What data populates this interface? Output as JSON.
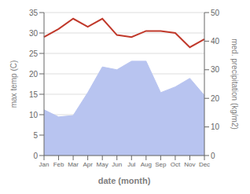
{
  "chart_data": {
    "type": "line",
    "categories": [
      "Jan",
      "Feb",
      "Mar",
      "Apr",
      "May",
      "Jun",
      "Jul",
      "Aug",
      "Sep",
      "Oct",
      "Nov",
      "Dec"
    ],
    "series": [
      {
        "type": "area",
        "axis": "y2",
        "color": "#b8c4f0",
        "values": [
          16,
          13.5,
          14,
          22,
          31,
          30,
          33,
          33,
          22,
          24,
          27,
          21
        ]
      },
      {
        "type": "line",
        "color": "#c0392b",
        "values": [
          29,
          31,
          33.5,
          31.5,
          33.5,
          29.5,
          29,
          30.5,
          30.5,
          30,
          26.5,
          28.5
        ]
      }
    ],
    "xlabel": "date (month)",
    "ylabel": "max temp (C)",
    "y2label": "med. precipitation (kg/m2)",
    "ylim": [
      0,
      35
    ],
    "yticks": [
      0,
      5,
      10,
      15,
      20,
      25,
      30,
      35
    ],
    "y2lim": [
      0,
      50
    ],
    "y2ticks": [
      0,
      10,
      20,
      30,
      40,
      50
    ],
    "grid": true
  }
}
